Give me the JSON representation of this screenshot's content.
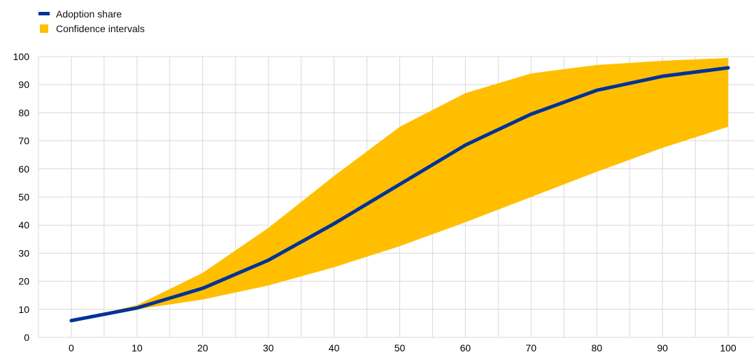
{
  "colors": {
    "line": "#003299",
    "band": "#ffbf00",
    "grid": "#d9d9d9"
  },
  "legend": {
    "items": [
      {
        "label": "Adoption share",
        "symbol": "line"
      },
      {
        "label": "Confidence intervals",
        "symbol": "box"
      }
    ]
  },
  "chart_data": {
    "type": "line",
    "title": "",
    "xlabel": "",
    "ylabel": "",
    "xlim": [
      -5,
      105
    ],
    "ylim": [
      0,
      100
    ],
    "x_ticks": [
      0,
      10,
      20,
      30,
      40,
      50,
      60,
      70,
      80,
      90,
      100
    ],
    "y_ticks": [
      0,
      10,
      20,
      30,
      40,
      50,
      60,
      70,
      80,
      90,
      100
    ],
    "x_grid_step": 5,
    "grid": true,
    "legend_position": "top-left",
    "series": [
      {
        "name": "Adoption share",
        "kind": "line",
        "x": [
          0,
          10,
          20,
          30,
          40,
          50,
          60,
          70,
          80,
          90,
          100
        ],
        "y": [
          6,
          10.5,
          17.5,
          27.5,
          40.5,
          54.5,
          68.5,
          79.5,
          88,
          93,
          96
        ]
      },
      {
        "name": "Confidence intervals",
        "kind": "band",
        "x": [
          0,
          10,
          20,
          30,
          40,
          50,
          60,
          70,
          80,
          90,
          100
        ],
        "lower": [
          6,
          10,
          13.5,
          18.5,
          25,
          32.5,
          41,
          50,
          59,
          67.5,
          75
        ],
        "upper": [
          6,
          11.5,
          23,
          39,
          57.5,
          75,
          87,
          94,
          97,
          98.5,
          99.5
        ]
      }
    ]
  }
}
